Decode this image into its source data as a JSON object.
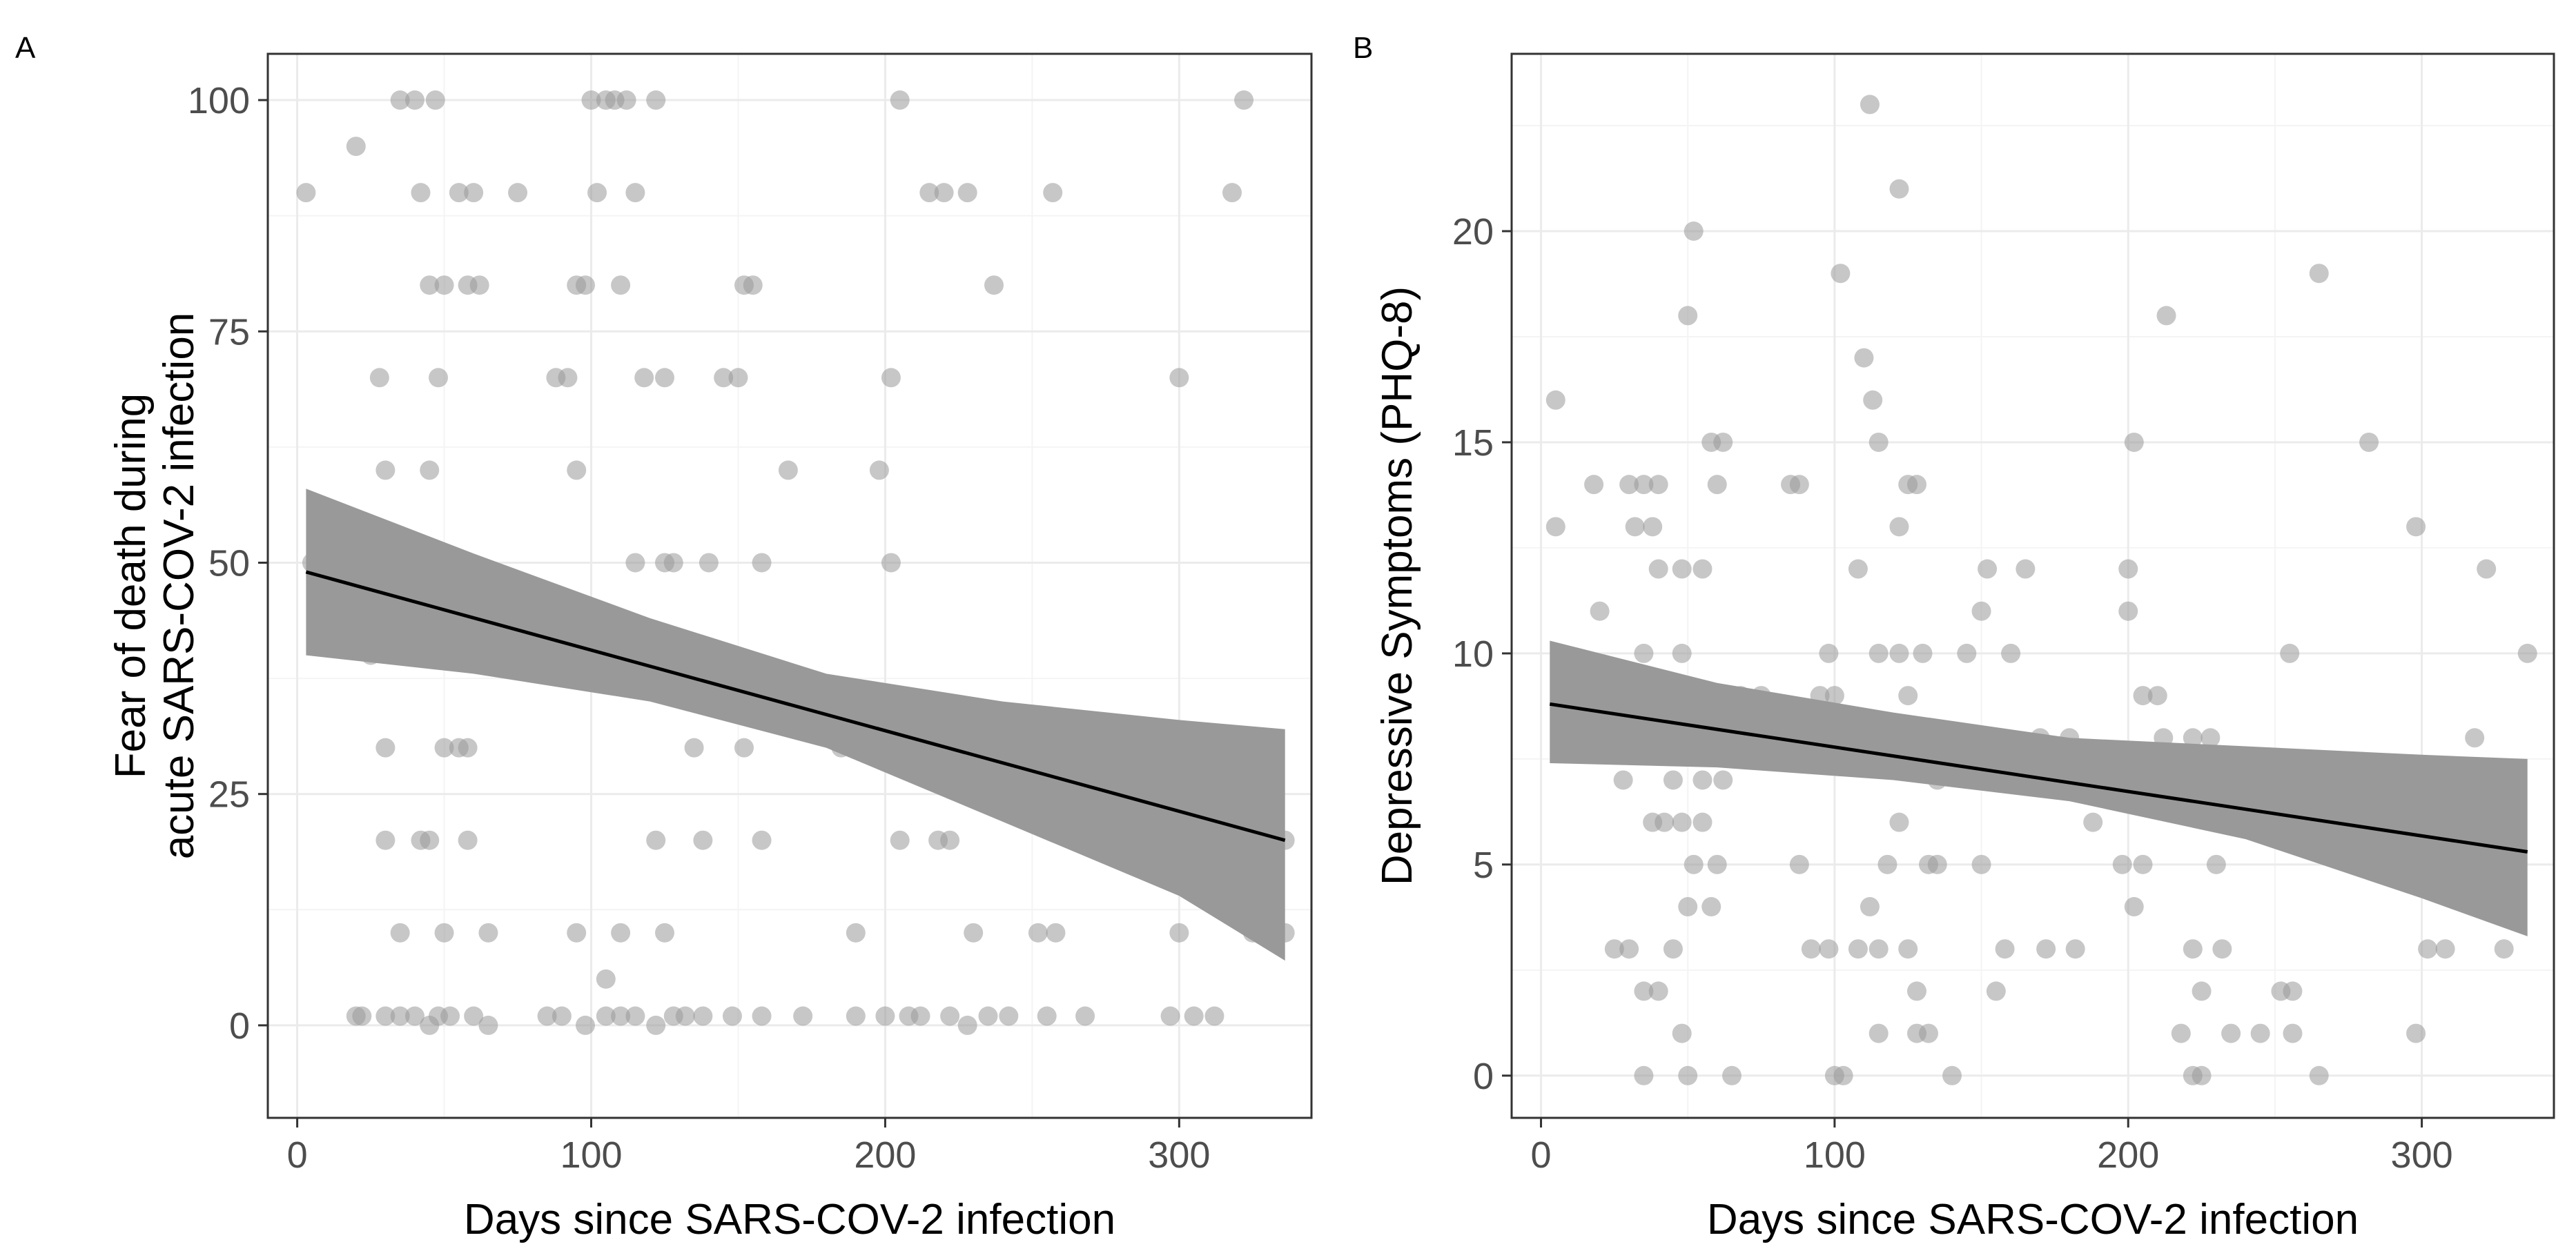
{
  "chart_data": [
    {
      "panel_letter": "A",
      "type": "scatter",
      "xlabel": "Days since SARS-COV-2 infection",
      "ylabel_lines": [
        "Fear of death during",
        "acute SARS-COV-2 infection"
      ],
      "xlim": [
        -10,
        345
      ],
      "ylim": [
        -10,
        105
      ],
      "x_ticks": [
        0,
        100,
        200,
        300
      ],
      "x_tick_labels": [
        "0",
        "100",
        "200",
        "300"
      ],
      "y_ticks": [
        0,
        25,
        50,
        75,
        100
      ],
      "y_tick_labels": [
        "0",
        "25",
        "50",
        "75",
        "100"
      ],
      "regression": {
        "x": [
          3,
          336
        ],
        "y": [
          49,
          20
        ]
      },
      "ci_band": {
        "x": [
          3,
          60,
          120,
          180,
          240,
          300,
          336
        ],
        "lower": [
          40,
          38,
          35,
          30,
          22,
          14,
          7
        ],
        "upper": [
          58,
          51,
          44,
          38,
          35,
          33,
          32
        ]
      },
      "points": [
        {
          "x": 3,
          "y": 90
        },
        {
          "x": 5,
          "y": 50
        },
        {
          "x": 20,
          "y": 95
        },
        {
          "x": 20,
          "y": 1
        },
        {
          "x": 28,
          "y": 70
        },
        {
          "x": 30,
          "y": 60
        },
        {
          "x": 32,
          "y": 50
        },
        {
          "x": 35,
          "y": 100
        },
        {
          "x": 40,
          "y": 100
        },
        {
          "x": 42,
          "y": 90
        },
        {
          "x": 45,
          "y": 80
        },
        {
          "x": 47,
          "y": 100
        },
        {
          "x": 48,
          "y": 70
        },
        {
          "x": 50,
          "y": 80
        },
        {
          "x": 55,
          "y": 90
        },
        {
          "x": 58,
          "y": 80
        },
        {
          "x": 60,
          "y": 90
        },
        {
          "x": 62,
          "y": 80
        },
        {
          "x": 75,
          "y": 90
        },
        {
          "x": 88,
          "y": 70
        },
        {
          "x": 92,
          "y": 70
        },
        {
          "x": 95,
          "y": 80
        },
        {
          "x": 98,
          "y": 80
        },
        {
          "x": 100,
          "y": 100
        },
        {
          "x": 102,
          "y": 90
        },
        {
          "x": 105,
          "y": 100
        },
        {
          "x": 108,
          "y": 100
        },
        {
          "x": 110,
          "y": 80
        },
        {
          "x": 112,
          "y": 100
        },
        {
          "x": 115,
          "y": 90
        },
        {
          "x": 118,
          "y": 70
        },
        {
          "x": 122,
          "y": 100
        },
        {
          "x": 125,
          "y": 70
        },
        {
          "x": 145,
          "y": 70
        },
        {
          "x": 150,
          "y": 70
        },
        {
          "x": 152,
          "y": 80
        },
        {
          "x": 155,
          "y": 80
        },
        {
          "x": 167,
          "y": 60
        },
        {
          "x": 198,
          "y": 60
        },
        {
          "x": 202,
          "y": 70
        },
        {
          "x": 205,
          "y": 100
        },
        {
          "x": 215,
          "y": 90
        },
        {
          "x": 220,
          "y": 90
        },
        {
          "x": 228,
          "y": 90
        },
        {
          "x": 237,
          "y": 80
        },
        {
          "x": 257,
          "y": 90
        },
        {
          "x": 300,
          "y": 70
        },
        {
          "x": 318,
          "y": 90
        },
        {
          "x": 322,
          "y": 100
        },
        {
          "x": 25,
          "y": 40
        },
        {
          "x": 28,
          "y": 50
        },
        {
          "x": 30,
          "y": 30
        },
        {
          "x": 33,
          "y": 50
        },
        {
          "x": 35,
          "y": 50
        },
        {
          "x": 38,
          "y": 50
        },
        {
          "x": 42,
          "y": 40
        },
        {
          "x": 45,
          "y": 60
        },
        {
          "x": 46,
          "y": 50
        },
        {
          "x": 48,
          "y": 40
        },
        {
          "x": 50,
          "y": 30
        },
        {
          "x": 55,
          "y": 30
        },
        {
          "x": 58,
          "y": 30
        },
        {
          "x": 95,
          "y": 60
        },
        {
          "x": 115,
          "y": 50
        },
        {
          "x": 125,
          "y": 50
        },
        {
          "x": 128,
          "y": 50
        },
        {
          "x": 132,
          "y": 40
        },
        {
          "x": 135,
          "y": 30
        },
        {
          "x": 140,
          "y": 50
        },
        {
          "x": 152,
          "y": 30
        },
        {
          "x": 158,
          "y": 50
        },
        {
          "x": 185,
          "y": 30
        },
        {
          "x": 202,
          "y": 50
        },
        {
          "x": 207,
          "y": 30
        },
        {
          "x": 228,
          "y": 30
        },
        {
          "x": 282,
          "y": 30
        },
        {
          "x": 292,
          "y": 30
        },
        {
          "x": 315,
          "y": 30
        },
        {
          "x": 30,
          "y": 20
        },
        {
          "x": 35,
          "y": 10
        },
        {
          "x": 42,
          "y": 20
        },
        {
          "x": 45,
          "y": 20
        },
        {
          "x": 50,
          "y": 10
        },
        {
          "x": 58,
          "y": 20
        },
        {
          "x": 65,
          "y": 10
        },
        {
          "x": 95,
          "y": 10
        },
        {
          "x": 105,
          "y": 5
        },
        {
          "x": 110,
          "y": 10
        },
        {
          "x": 122,
          "y": 20
        },
        {
          "x": 125,
          "y": 10
        },
        {
          "x": 138,
          "y": 20
        },
        {
          "x": 158,
          "y": 20
        },
        {
          "x": 190,
          "y": 10
        },
        {
          "x": 205,
          "y": 20
        },
        {
          "x": 218,
          "y": 20
        },
        {
          "x": 222,
          "y": 20
        },
        {
          "x": 230,
          "y": 10
        },
        {
          "x": 252,
          "y": 10
        },
        {
          "x": 258,
          "y": 10
        },
        {
          "x": 300,
          "y": 10
        },
        {
          "x": 310,
          "y": 20
        },
        {
          "x": 325,
          "y": 10
        },
        {
          "x": 336,
          "y": 20
        },
        {
          "x": 336,
          "y": 10
        },
        {
          "x": 22,
          "y": 1
        },
        {
          "x": 30,
          "y": 1
        },
        {
          "x": 35,
          "y": 1
        },
        {
          "x": 40,
          "y": 1
        },
        {
          "x": 45,
          "y": 0
        },
        {
          "x": 48,
          "y": 1
        },
        {
          "x": 52,
          "y": 1
        },
        {
          "x": 60,
          "y": 1
        },
        {
          "x": 65,
          "y": 0
        },
        {
          "x": 85,
          "y": 1
        },
        {
          "x": 90,
          "y": 1
        },
        {
          "x": 98,
          "y": 0
        },
        {
          "x": 105,
          "y": 1
        },
        {
          "x": 110,
          "y": 1
        },
        {
          "x": 115,
          "y": 1
        },
        {
          "x": 122,
          "y": 0
        },
        {
          "x": 128,
          "y": 1
        },
        {
          "x": 132,
          "y": 1
        },
        {
          "x": 138,
          "y": 1
        },
        {
          "x": 148,
          "y": 1
        },
        {
          "x": 158,
          "y": 1
        },
        {
          "x": 172,
          "y": 1
        },
        {
          "x": 190,
          "y": 1
        },
        {
          "x": 200,
          "y": 1
        },
        {
          "x": 208,
          "y": 1
        },
        {
          "x": 212,
          "y": 1
        },
        {
          "x": 222,
          "y": 1
        },
        {
          "x": 228,
          "y": 0
        },
        {
          "x": 235,
          "y": 1
        },
        {
          "x": 242,
          "y": 1
        },
        {
          "x": 255,
          "y": 1
        },
        {
          "x": 268,
          "y": 1
        },
        {
          "x": 297,
          "y": 1
        },
        {
          "x": 305,
          "y": 1
        },
        {
          "x": 312,
          "y": 1
        }
      ]
    },
    {
      "panel_letter": "B",
      "type": "scatter",
      "xlabel": "Days since SARS-COV-2 infection",
      "ylabel_lines": [
        "Depressive Symptoms (PHQ-8)"
      ],
      "xlim": [
        -10,
        345
      ],
      "ylim": [
        -1,
        24.2
      ],
      "x_ticks": [
        0,
        100,
        200,
        300
      ],
      "x_tick_labels": [
        "0",
        "100",
        "200",
        "300"
      ],
      "y_ticks": [
        0,
        5,
        10,
        15,
        20
      ],
      "y_tick_labels": [
        "0",
        "5",
        "10",
        "15",
        "20"
      ],
      "regression": {
        "x": [
          3,
          336
        ],
        "y": [
          8.8,
          5.3
        ]
      },
      "ci_band": {
        "x": [
          3,
          60,
          120,
          180,
          240,
          300,
          336
        ],
        "lower": [
          7.4,
          7.3,
          7.0,
          6.5,
          5.6,
          4.2,
          3.3
        ],
        "upper": [
          10.3,
          9.3,
          8.6,
          8.0,
          7.8,
          7.6,
          7.5
        ]
      },
      "points": [
        {
          "x": 5,
          "y": 16
        },
        {
          "x": 5,
          "y": 13
        },
        {
          "x": 18,
          "y": 14
        },
        {
          "x": 20,
          "y": 11
        },
        {
          "x": 30,
          "y": 14
        },
        {
          "x": 32,
          "y": 13
        },
        {
          "x": 35,
          "y": 14
        },
        {
          "x": 38,
          "y": 13
        },
        {
          "x": 40,
          "y": 14
        },
        {
          "x": 40,
          "y": 12
        },
        {
          "x": 48,
          "y": 12
        },
        {
          "x": 50,
          "y": 18
        },
        {
          "x": 52,
          "y": 20
        },
        {
          "x": 55,
          "y": 12
        },
        {
          "x": 58,
          "y": 15
        },
        {
          "x": 60,
          "y": 14
        },
        {
          "x": 62,
          "y": 15
        },
        {
          "x": 85,
          "y": 14
        },
        {
          "x": 88,
          "y": 14
        },
        {
          "x": 102,
          "y": 19
        },
        {
          "x": 110,
          "y": 17
        },
        {
          "x": 112,
          "y": 23
        },
        {
          "x": 113,
          "y": 16
        },
        {
          "x": 115,
          "y": 15
        },
        {
          "x": 122,
          "y": 21
        },
        {
          "x": 125,
          "y": 14
        },
        {
          "x": 128,
          "y": 14
        },
        {
          "x": 122,
          "y": 13
        },
        {
          "x": 165,
          "y": 12
        },
        {
          "x": 200,
          "y": 12
        },
        {
          "x": 202,
          "y": 15
        },
        {
          "x": 213,
          "y": 18
        },
        {
          "x": 265,
          "y": 19
        },
        {
          "x": 282,
          "y": 15
        },
        {
          "x": 298,
          "y": 13
        },
        {
          "x": 322,
          "y": 12
        },
        {
          "x": 336,
          "y": 10
        },
        {
          "x": 10,
          "y": 9
        },
        {
          "x": 25,
          "y": 8
        },
        {
          "x": 35,
          "y": 10
        },
        {
          "x": 42,
          "y": 8
        },
        {
          "x": 45,
          "y": 7
        },
        {
          "x": 48,
          "y": 10
        },
        {
          "x": 52,
          "y": 9
        },
        {
          "x": 55,
          "y": 7
        },
        {
          "x": 60,
          "y": 8
        },
        {
          "x": 62,
          "y": 7
        },
        {
          "x": 68,
          "y": 9
        },
        {
          "x": 75,
          "y": 9
        },
        {
          "x": 95,
          "y": 9
        },
        {
          "x": 98,
          "y": 10
        },
        {
          "x": 100,
          "y": 9
        },
        {
          "x": 108,
          "y": 12
        },
        {
          "x": 115,
          "y": 10
        },
        {
          "x": 118,
          "y": 8
        },
        {
          "x": 122,
          "y": 10
        },
        {
          "x": 125,
          "y": 9
        },
        {
          "x": 130,
          "y": 10
        },
        {
          "x": 135,
          "y": 7
        },
        {
          "x": 145,
          "y": 10
        },
        {
          "x": 150,
          "y": 11
        },
        {
          "x": 152,
          "y": 12
        },
        {
          "x": 155,
          "y": 8
        },
        {
          "x": 160,
          "y": 10
        },
        {
          "x": 170,
          "y": 8
        },
        {
          "x": 180,
          "y": 8
        },
        {
          "x": 200,
          "y": 11
        },
        {
          "x": 205,
          "y": 9
        },
        {
          "x": 210,
          "y": 9
        },
        {
          "x": 212,
          "y": 8
        },
        {
          "x": 218,
          "y": 7
        },
        {
          "x": 222,
          "y": 8
        },
        {
          "x": 228,
          "y": 8
        },
        {
          "x": 255,
          "y": 10
        },
        {
          "x": 300,
          "y": 7
        },
        {
          "x": 318,
          "y": 8
        },
        {
          "x": 25,
          "y": 3
        },
        {
          "x": 28,
          "y": 7
        },
        {
          "x": 30,
          "y": 3
        },
        {
          "x": 35,
          "y": 2
        },
        {
          "x": 38,
          "y": 6
        },
        {
          "x": 40,
          "y": 2
        },
        {
          "x": 42,
          "y": 6
        },
        {
          "x": 45,
          "y": 3
        },
        {
          "x": 48,
          "y": 6
        },
        {
          "x": 50,
          "y": 4
        },
        {
          "x": 52,
          "y": 5
        },
        {
          "x": 55,
          "y": 6
        },
        {
          "x": 58,
          "y": 4
        },
        {
          "x": 60,
          "y": 5
        },
        {
          "x": 88,
          "y": 5
        },
        {
          "x": 92,
          "y": 3
        },
        {
          "x": 98,
          "y": 3
        },
        {
          "x": 108,
          "y": 3
        },
        {
          "x": 112,
          "y": 4
        },
        {
          "x": 115,
          "y": 3
        },
        {
          "x": 118,
          "y": 5
        },
        {
          "x": 122,
          "y": 6
        },
        {
          "x": 125,
          "y": 3
        },
        {
          "x": 128,
          "y": 2
        },
        {
          "x": 132,
          "y": 5
        },
        {
          "x": 135,
          "y": 5
        },
        {
          "x": 150,
          "y": 5
        },
        {
          "x": 155,
          "y": 2
        },
        {
          "x": 158,
          "y": 3
        },
        {
          "x": 172,
          "y": 3
        },
        {
          "x": 182,
          "y": 3
        },
        {
          "x": 188,
          "y": 6
        },
        {
          "x": 198,
          "y": 5
        },
        {
          "x": 202,
          "y": 4
        },
        {
          "x": 205,
          "y": 5
        },
        {
          "x": 218,
          "y": 1
        },
        {
          "x": 222,
          "y": 3
        },
        {
          "x": 225,
          "y": 2
        },
        {
          "x": 230,
          "y": 5
        },
        {
          "x": 232,
          "y": 3
        },
        {
          "x": 245,
          "y": 1
        },
        {
          "x": 252,
          "y": 2
        },
        {
          "x": 256,
          "y": 2
        },
        {
          "x": 300,
          "y": 5
        },
        {
          "x": 302,
          "y": 3
        },
        {
          "x": 308,
          "y": 3
        },
        {
          "x": 328,
          "y": 3
        },
        {
          "x": 35,
          "y": 0
        },
        {
          "x": 48,
          "y": 1
        },
        {
          "x": 50,
          "y": 0
        },
        {
          "x": 65,
          "y": 0
        },
        {
          "x": 100,
          "y": 0
        },
        {
          "x": 103,
          "y": 0
        },
        {
          "x": 115,
          "y": 1
        },
        {
          "x": 128,
          "y": 1
        },
        {
          "x": 132,
          "y": 1
        },
        {
          "x": 140,
          "y": 0
        },
        {
          "x": 222,
          "y": 0
        },
        {
          "x": 225,
          "y": 0
        },
        {
          "x": 235,
          "y": 1
        },
        {
          "x": 256,
          "y": 1
        },
        {
          "x": 265,
          "y": 0
        },
        {
          "x": 298,
          "y": 1
        }
      ]
    }
  ]
}
